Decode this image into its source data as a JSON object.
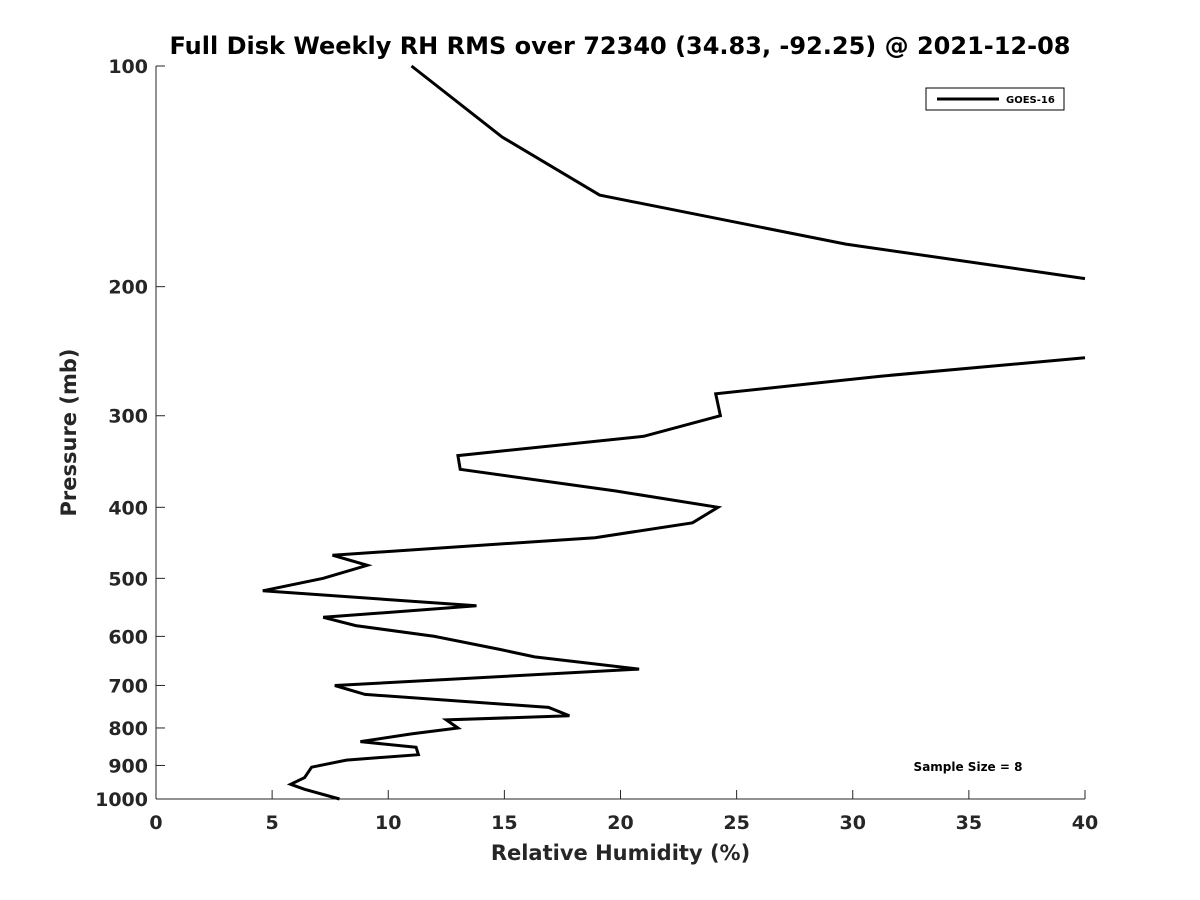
{
  "chart_data": {
    "type": "line",
    "title": "Full Disk Weekly RH RMS over 72340 (34.83, -92.25) @ 2021-12-08",
    "xlabel": "Relative Humidity (%)",
    "ylabel": "Pressure (mb)",
    "xlim": [
      0,
      40
    ],
    "ylim": [
      1000,
      100
    ],
    "y_scale": "log",
    "y_reversed": true,
    "grid": false,
    "legend_position": "top-right",
    "xticks": [
      0,
      5,
      10,
      15,
      20,
      25,
      30,
      35,
      40
    ],
    "yticks": [
      100,
      200,
      300,
      400,
      500,
      600,
      700,
      800,
      900,
      1000
    ],
    "annotation": "Sample Size = 8",
    "series": [
      {
        "name": "GOES-16",
        "color": "#000000",
        "segments": [
          {
            "x": [
              11.0,
              14.9,
              19.1,
              29.7,
              40.0
            ],
            "y": [
              100,
              125,
              150,
              175,
              195
            ]
          },
          {
            "x": [
              40.0,
              31.2,
              24.1,
              24.3,
              21.0,
              13.0,
              13.1,
              19.8,
              24.2,
              23.1,
              18.9,
              7.6,
              9.1,
              7.2,
              4.6,
              13.8,
              7.2,
              8.6,
              12.0,
              14.8,
              16.3,
              20.8,
              7.7,
              9.0,
              16.9,
              17.8,
              12.5,
              13.0,
              11.0,
              8.8,
              11.2,
              11.3,
              8.2,
              6.7,
              6.4,
              5.8,
              6.4,
              7.9
            ],
            "y": [
              250,
              265,
              280,
              300,
              320,
              340,
              355,
              380,
              400,
              420,
              440,
              465,
              480,
              500,
              520,
              545,
              565,
              580,
              600,
              625,
              640,
              665,
              700,
              720,
              750,
              770,
              780,
              800,
              815,
              835,
              850,
              870,
              885,
              905,
              935,
              955,
              970,
              1000
            ]
          }
        ]
      }
    ]
  }
}
